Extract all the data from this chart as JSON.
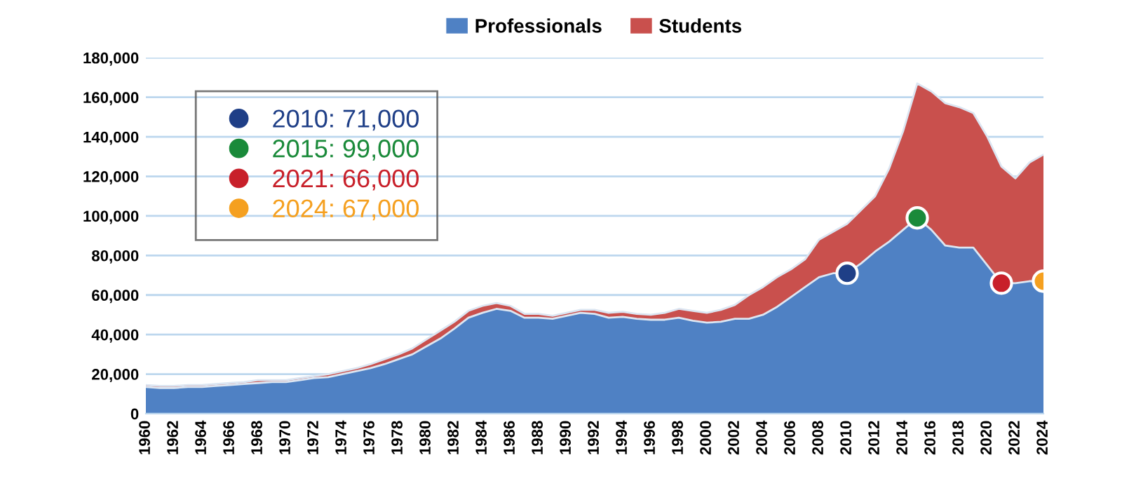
{
  "chart_data": {
    "type": "area",
    "stacked": true,
    "x": [
      1960,
      1961,
      1962,
      1963,
      1964,
      1965,
      1966,
      1967,
      1968,
      1969,
      1970,
      1971,
      1972,
      1973,
      1974,
      1975,
      1976,
      1977,
      1978,
      1979,
      1980,
      1981,
      1982,
      1983,
      1984,
      1985,
      1986,
      1987,
      1988,
      1989,
      1990,
      1991,
      1992,
      1993,
      1994,
      1995,
      1996,
      1997,
      1998,
      1999,
      2000,
      2001,
      2002,
      2003,
      2004,
      2005,
      2006,
      2007,
      2008,
      2009,
      2010,
      2011,
      2012,
      2013,
      2014,
      2015,
      2016,
      2017,
      2018,
      2019,
      2020,
      2021,
      2022,
      2023,
      2024
    ],
    "series": [
      {
        "name": "Professionals",
        "color": "#4f81c4",
        "values": [
          13500,
          13000,
          13000,
          13500,
          13500,
          14000,
          14500,
          15000,
          15500,
          16000,
          16000,
          17000,
          18000,
          18500,
          20000,
          21500,
          23000,
          25000,
          27500,
          30000,
          34000,
          38000,
          43000,
          48500,
          51000,
          53000,
          52000,
          48500,
          48500,
          48000,
          49500,
          51000,
          50500,
          48500,
          49000,
          48000,
          47500,
          47500,
          48500,
          47000,
          46000,
          46500,
          48000,
          48000,
          50000,
          54000,
          59000,
          64000,
          69000,
          71000,
          71000,
          76000,
          82000,
          87000,
          93000,
          99000,
          93000,
          85000,
          84000,
          84000,
          75000,
          66000,
          66000,
          67000,
          67000
        ]
      },
      {
        "name": "Students",
        "color": "#c9504d",
        "values": [
          1000,
          1000,
          1000,
          1000,
          1000,
          1000,
          1000,
          1000,
          1500,
          1000,
          1000,
          1000,
          1000,
          1500,
          1500,
          1500,
          2000,
          2500,
          2500,
          3000,
          3500,
          4000,
          3500,
          3500,
          3500,
          3000,
          2500,
          2000,
          2000,
          1500,
          1500,
          1500,
          2000,
          2500,
          2500,
          2500,
          2500,
          3500,
          4500,
          5000,
          5000,
          6000,
          7000,
          12000,
          14000,
          15000,
          14000,
          14000,
          19000,
          21000,
          25000,
          27000,
          28000,
          37000,
          50000,
          68000,
          70000,
          72000,
          71000,
          68000,
          65000,
          59000,
          53000,
          60000,
          64000
        ]
      },
      {
        "type": "scatter",
        "marker": "circle",
        "name": "2010: 71,000",
        "color": "#1f3f87",
        "x": [
          2010
        ],
        "values": [
          71000
        ]
      },
      {
        "type": "scatter",
        "marker": "circle",
        "name": "2015: 99,000",
        "color": "#1a8a3a",
        "x": [
          2015
        ],
        "values": [
          99000
        ]
      },
      {
        "type": "scatter",
        "marker": "circle",
        "name": "2021: 66,000",
        "color": "#c8202a",
        "x": [
          2021
        ],
        "values": [
          66000
        ]
      },
      {
        "type": "scatter",
        "marker": "circle",
        "name": "2024: 67,000",
        "color": "#f5a020",
        "x": [
          2024
        ],
        "values": [
          67000
        ]
      }
    ],
    "xlim": [
      1960,
      2024
    ],
    "xticks": [
      1960,
      1962,
      1964,
      1966,
      1968,
      1970,
      1972,
      1974,
      1976,
      1978,
      1980,
      1982,
      1984,
      1986,
      1988,
      1990,
      1992,
      1994,
      1996,
      1998,
      2000,
      2002,
      2004,
      2006,
      2008,
      2010,
      2012,
      2014,
      2016,
      2018,
      2020,
      2022,
      2024
    ],
    "ylim": [
      0,
      180000
    ],
    "yticks": [
      {
        "value": 0,
        "label": "0"
      },
      {
        "value": 20000,
        "label": "20,000"
      },
      {
        "value": 40000,
        "label": "40,000"
      },
      {
        "value": 60000,
        "label": "60,000"
      },
      {
        "value": 80000,
        "label": "80,000"
      },
      {
        "value": 100000,
        "label": "100,000"
      },
      {
        "value": 120000,
        "label": "120,000"
      },
      {
        "value": 140000,
        "label": "140,000"
      },
      {
        "value": 160000,
        "label": "160,000"
      },
      {
        "value": 180000,
        "label": "180,000"
      }
    ],
    "grid": "y",
    "legend": "top"
  }
}
